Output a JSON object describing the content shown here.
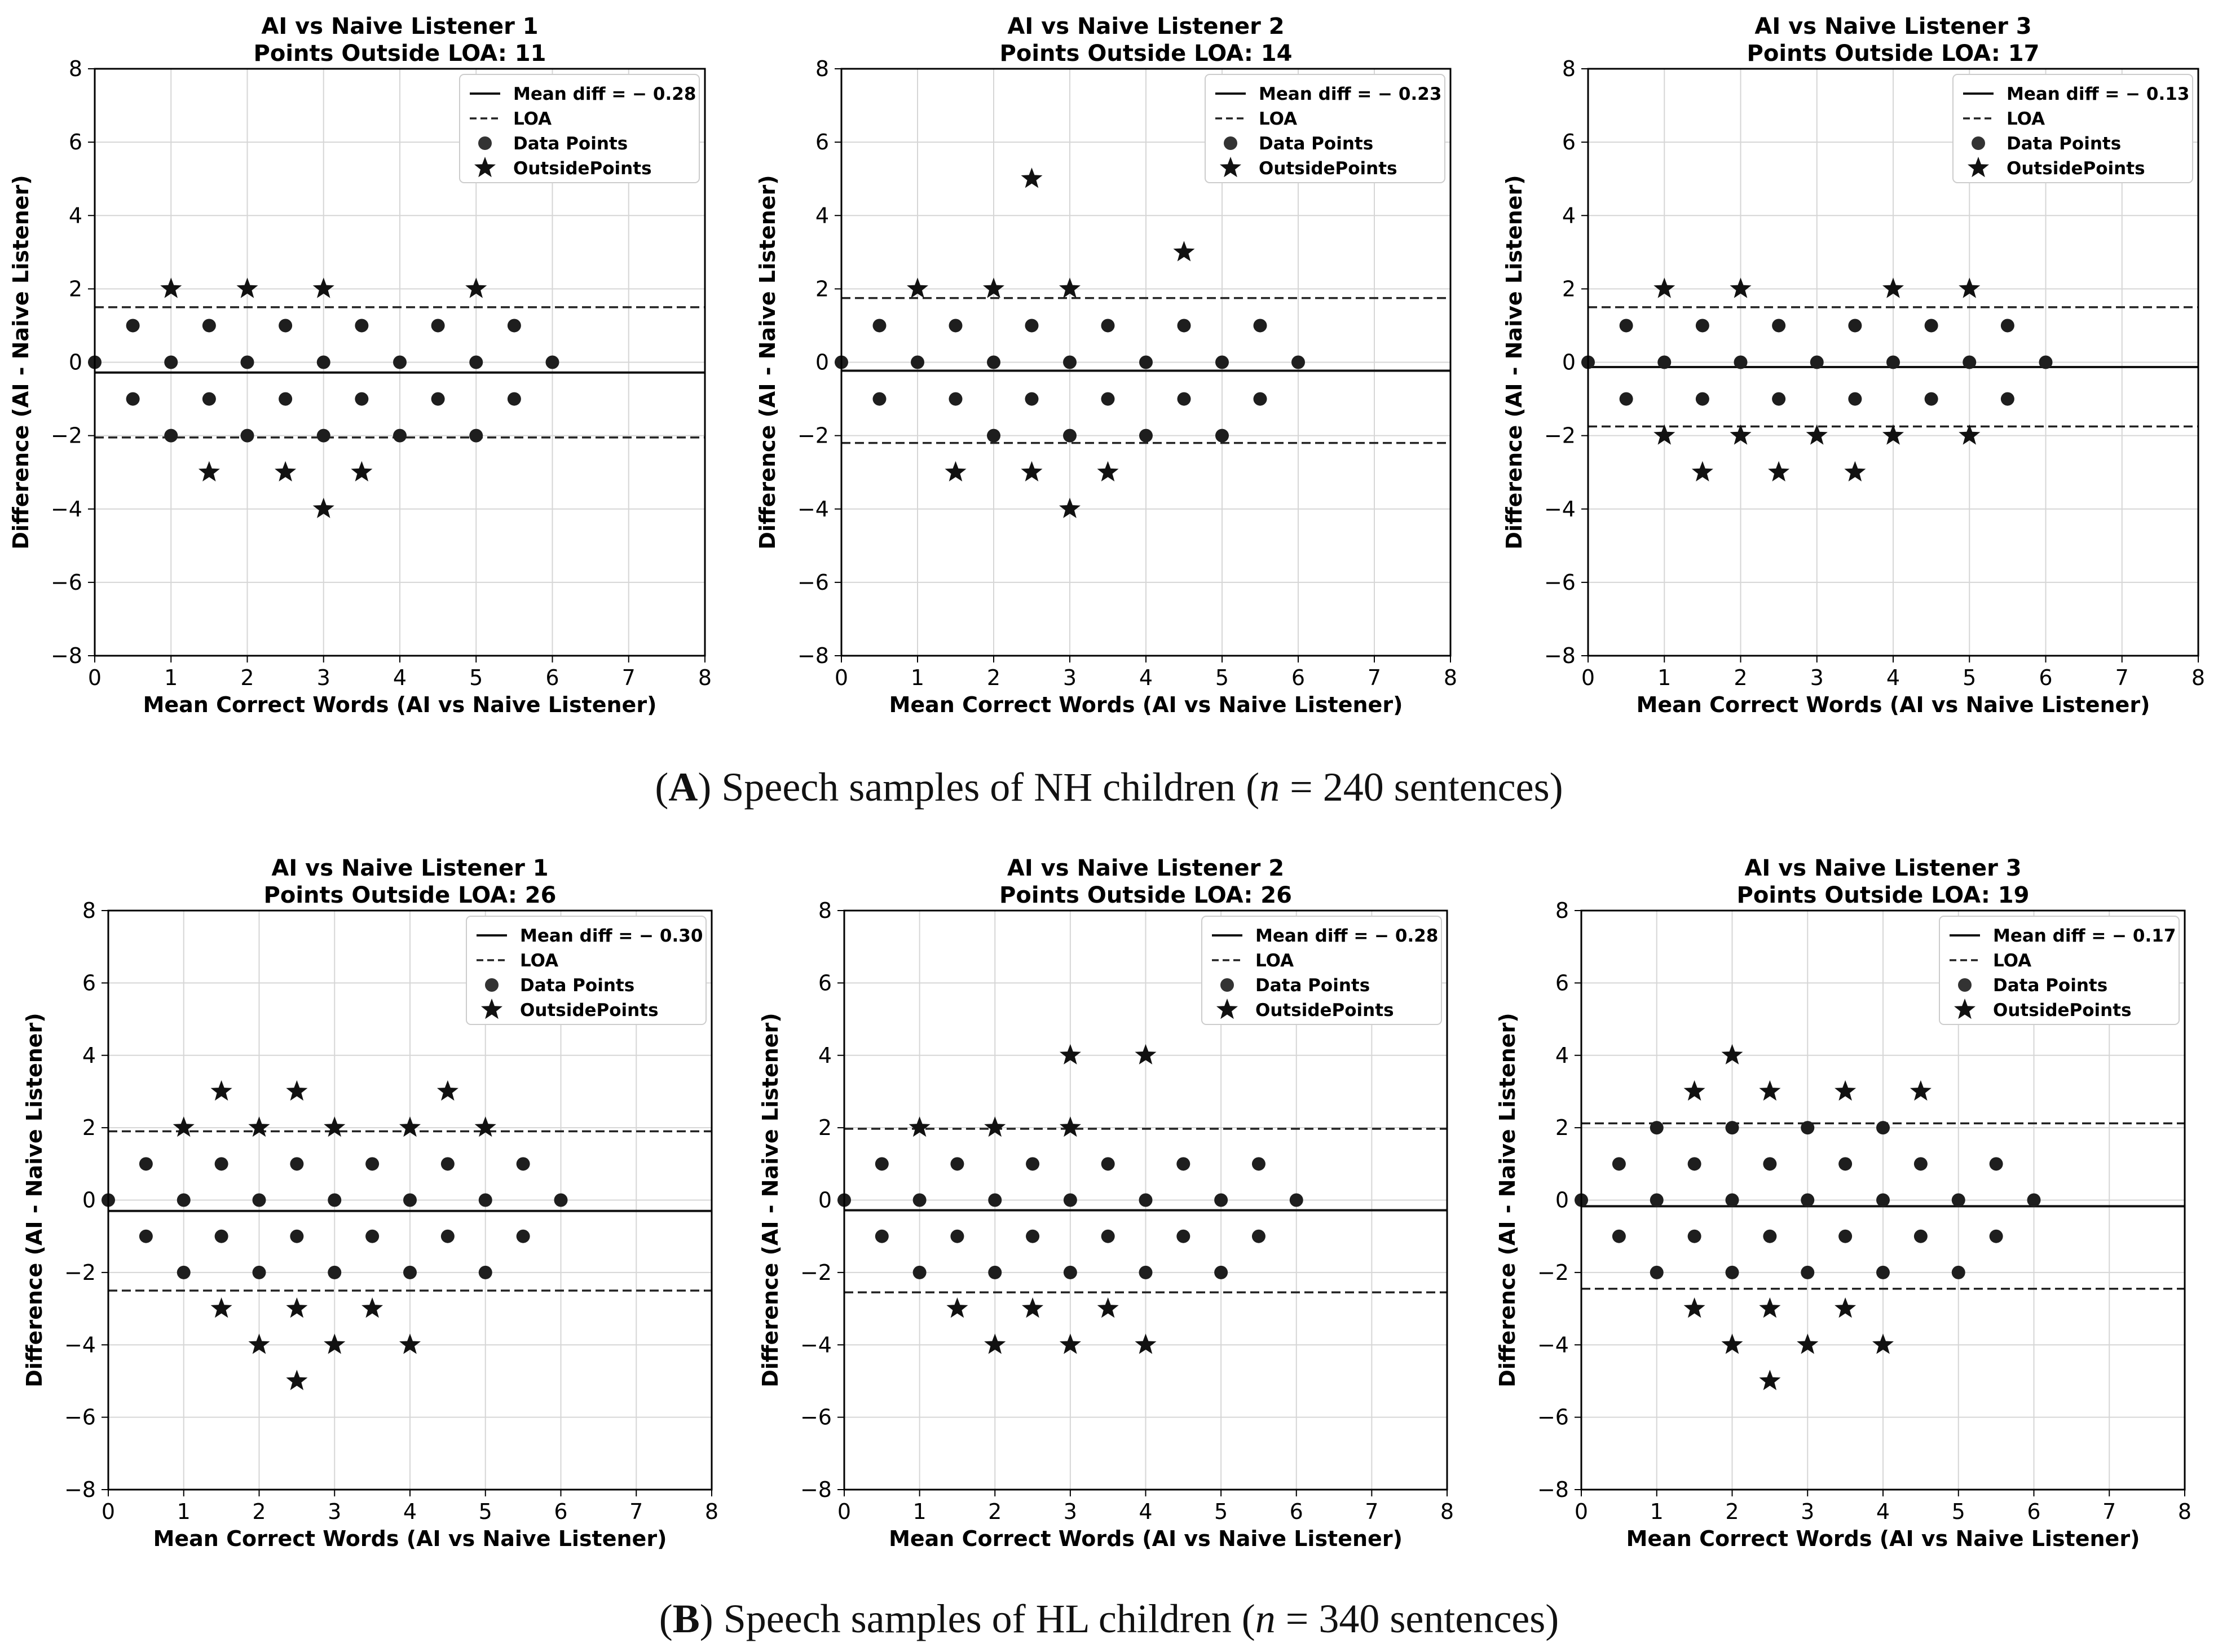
{
  "chart_data": [
    {
      "type": "scatter",
      "title": "AI vs Naive Listener 1",
      "subtitle": "Points Outside LOA: 11",
      "xlabel": "Mean Correct Words (AI vs Naive Listener)",
      "ylabel": "Difference (AI - Naive Listener)",
      "xlim": [
        0,
        8
      ],
      "ylim": [
        -8,
        8
      ],
      "xticks": [
        "0",
        "1",
        "2",
        "3",
        "4",
        "5",
        "6",
        "7",
        "8"
      ],
      "yticks": [
        "−8",
        "−6",
        "−4",
        "−2",
        "0",
        "2",
        "4",
        "6",
        "8"
      ],
      "mean_diff": -0.28,
      "loa": [
        1.5,
        -2.05
      ],
      "legend": {
        "mean_label": "Mean diff =   − 0.28",
        "loa_label": "LOA",
        "data_label": "Data Points",
        "outside_label": "OutsidePoints"
      },
      "points": [
        [
          0,
          0
        ],
        [
          0.5,
          1
        ],
        [
          0.5,
          -1
        ],
        [
          1,
          0
        ],
        [
          1,
          -2
        ],
        [
          1.5,
          1
        ],
        [
          1.5,
          -1
        ],
        [
          2,
          0
        ],
        [
          2,
          -2
        ],
        [
          2.5,
          1
        ],
        [
          2.5,
          -1
        ],
        [
          3,
          0
        ],
        [
          3,
          -2
        ],
        [
          3.5,
          1
        ],
        [
          3.5,
          -1
        ],
        [
          4,
          0
        ],
        [
          4,
          -2
        ],
        [
          4.5,
          1
        ],
        [
          4.5,
          -1
        ],
        [
          5,
          0
        ],
        [
          5,
          -2
        ],
        [
          5.5,
          1
        ],
        [
          5.5,
          -1
        ],
        [
          6,
          0
        ]
      ],
      "outside": [
        [
          1,
          2
        ],
        [
          2,
          2
        ],
        [
          3,
          2
        ],
        [
          5,
          2
        ],
        [
          1.5,
          -3
        ],
        [
          2.5,
          -3
        ],
        [
          3.5,
          -3
        ],
        [
          3,
          -4
        ]
      ]
    },
    {
      "type": "scatter",
      "title": "AI vs Naive Listener 2",
      "subtitle": "Points Outside LOA: 14",
      "xlabel": "Mean Correct Words (AI vs Naive Listener)",
      "ylabel": "Difference (AI - Naive Listener)",
      "xlim": [
        0,
        8
      ],
      "ylim": [
        -8,
        8
      ],
      "xticks": [
        "0",
        "1",
        "2",
        "3",
        "4",
        "5",
        "6",
        "7",
        "8"
      ],
      "yticks": [
        "−8",
        "−6",
        "−4",
        "−2",
        "0",
        "2",
        "4",
        "6",
        "8"
      ],
      "mean_diff": -0.23,
      "loa": [
        1.75,
        -2.2
      ],
      "legend": {
        "mean_label": "Mean diff =   − 0.23",
        "loa_label": "LOA",
        "data_label": "Data Points",
        "outside_label": "OutsidePoints"
      },
      "points": [
        [
          0,
          0
        ],
        [
          0.5,
          1
        ],
        [
          0.5,
          -1
        ],
        [
          1,
          0
        ],
        [
          1.5,
          1
        ],
        [
          1.5,
          -1
        ],
        [
          2,
          0
        ],
        [
          2,
          -2
        ],
        [
          2.5,
          1
        ],
        [
          2.5,
          -1
        ],
        [
          3,
          0
        ],
        [
          3,
          -2
        ],
        [
          3.5,
          1
        ],
        [
          3.5,
          -1
        ],
        [
          4,
          0
        ],
        [
          4,
          -2
        ],
        [
          4.5,
          1
        ],
        [
          4.5,
          -1
        ],
        [
          5,
          0
        ],
        [
          5,
          -2
        ],
        [
          5.5,
          1
        ],
        [
          5.5,
          -1
        ],
        [
          6,
          0
        ]
      ],
      "outside": [
        [
          1,
          2
        ],
        [
          2,
          2
        ],
        [
          3,
          2
        ],
        [
          2.5,
          5
        ],
        [
          4.5,
          3
        ],
        [
          1.5,
          -3
        ],
        [
          2.5,
          -3
        ],
        [
          3.5,
          -3
        ],
        [
          3,
          -4
        ]
      ]
    },
    {
      "type": "scatter",
      "title": "AI vs Naive Listener 3",
      "subtitle": "Points Outside LOA: 17",
      "xlabel": "Mean Correct Words (AI vs Naive Listener)",
      "ylabel": "Difference (AI - Naive Listener)",
      "xlim": [
        0,
        8
      ],
      "ylim": [
        -8,
        8
      ],
      "xticks": [
        "0",
        "1",
        "2",
        "3",
        "4",
        "5",
        "6",
        "7",
        "8"
      ],
      "yticks": [
        "−8",
        "−6",
        "−4",
        "−2",
        "0",
        "2",
        "4",
        "6",
        "8"
      ],
      "mean_diff": -0.13,
      "loa": [
        1.5,
        -1.75
      ],
      "legend": {
        "mean_label": "Mean diff =   − 0.13",
        "loa_label": "LOA",
        "data_label": "Data Points",
        "outside_label": "OutsidePoints"
      },
      "points": [
        [
          0,
          0
        ],
        [
          0.5,
          1
        ],
        [
          0.5,
          -1
        ],
        [
          1,
          0
        ],
        [
          1.5,
          1
        ],
        [
          1.5,
          -1
        ],
        [
          2,
          0
        ],
        [
          2.5,
          1
        ],
        [
          2.5,
          -1
        ],
        [
          3,
          0
        ],
        [
          3.5,
          1
        ],
        [
          3.5,
          -1
        ],
        [
          4,
          0
        ],
        [
          4.5,
          1
        ],
        [
          4.5,
          -1
        ],
        [
          5,
          0
        ],
        [
          5.5,
          1
        ],
        [
          5.5,
          -1
        ],
        [
          6,
          0
        ]
      ],
      "outside": [
        [
          1,
          2
        ],
        [
          2,
          2
        ],
        [
          4,
          2
        ],
        [
          5,
          2
        ],
        [
          1,
          -2
        ],
        [
          2,
          -2
        ],
        [
          3,
          -2
        ],
        [
          4,
          -2
        ],
        [
          5,
          -2
        ],
        [
          1.5,
          -3
        ],
        [
          2.5,
          -3
        ],
        [
          3.5,
          -3
        ]
      ]
    },
    {
      "type": "scatter",
      "title": "AI vs Naive Listener 1",
      "subtitle": "Points Outside LOA: 26",
      "xlabel": "Mean Correct Words (AI vs Naive Listener)",
      "ylabel": "Difference (AI - Naive Listener)",
      "xlim": [
        0,
        8
      ],
      "ylim": [
        -8,
        8
      ],
      "xticks": [
        "0",
        "1",
        "2",
        "3",
        "4",
        "5",
        "6",
        "7",
        "8"
      ],
      "yticks": [
        "−8",
        "−6",
        "−4",
        "−2",
        "0",
        "2",
        "4",
        "6",
        "8"
      ],
      "mean_diff": -0.3,
      "loa": [
        1.9,
        -2.5
      ],
      "legend": {
        "mean_label": "Mean diff =   − 0.30",
        "loa_label": "LOA",
        "data_label": "Data Points",
        "outside_label": "OutsidePoints"
      },
      "points": [
        [
          0,
          0
        ],
        [
          0.5,
          1
        ],
        [
          0.5,
          -1
        ],
        [
          1,
          0
        ],
        [
          1,
          -2
        ],
        [
          1.5,
          1
        ],
        [
          1.5,
          -1
        ],
        [
          2,
          0
        ],
        [
          2,
          -2
        ],
        [
          2.5,
          1
        ],
        [
          2.5,
          -1
        ],
        [
          3,
          0
        ],
        [
          3,
          -2
        ],
        [
          3.5,
          1
        ],
        [
          3.5,
          -1
        ],
        [
          4,
          0
        ],
        [
          4,
          -2
        ],
        [
          4.5,
          1
        ],
        [
          4.5,
          -1
        ],
        [
          5,
          0
        ],
        [
          5,
          -2
        ],
        [
          5.5,
          1
        ],
        [
          5.5,
          -1
        ],
        [
          6,
          0
        ]
      ],
      "outside": [
        [
          1,
          2
        ],
        [
          2,
          2
        ],
        [
          3,
          2
        ],
        [
          4,
          2
        ],
        [
          5,
          2
        ],
        [
          1.5,
          3
        ],
        [
          2.5,
          3
        ],
        [
          4.5,
          3
        ],
        [
          1.5,
          -3
        ],
        [
          2.5,
          -3
        ],
        [
          3.5,
          -3
        ],
        [
          2,
          -4
        ],
        [
          3,
          -4
        ],
        [
          4,
          -4
        ],
        [
          2.5,
          -5
        ]
      ]
    },
    {
      "type": "scatter",
      "title": "AI vs Naive Listener 2",
      "subtitle": "Points Outside LOA: 26",
      "xlabel": "Mean Correct Words (AI vs Naive Listener)",
      "ylabel": "Difference (AI - Naive Listener)",
      "xlim": [
        0,
        8
      ],
      "ylim": [
        -8,
        8
      ],
      "xticks": [
        "0",
        "1",
        "2",
        "3",
        "4",
        "5",
        "6",
        "7",
        "8"
      ],
      "yticks": [
        "−8",
        "−6",
        "−4",
        "−2",
        "0",
        "2",
        "4",
        "6",
        "8"
      ],
      "mean_diff": -0.28,
      "loa": [
        1.97,
        -2.55
      ],
      "legend": {
        "mean_label": "Mean diff =   − 0.28",
        "loa_label": "LOA",
        "data_label": "Data Points",
        "outside_label": "OutsidePoints"
      },
      "points": [
        [
          0,
          0
        ],
        [
          0.5,
          1
        ],
        [
          0.5,
          -1
        ],
        [
          1,
          0
        ],
        [
          1,
          -2
        ],
        [
          1.5,
          1
        ],
        [
          1.5,
          -1
        ],
        [
          2,
          0
        ],
        [
          2,
          -2
        ],
        [
          2.5,
          1
        ],
        [
          2.5,
          -1
        ],
        [
          3,
          0
        ],
        [
          3,
          -2
        ],
        [
          3.5,
          1
        ],
        [
          3.5,
          -1
        ],
        [
          4,
          0
        ],
        [
          4,
          -2
        ],
        [
          4.5,
          1
        ],
        [
          4.5,
          -1
        ],
        [
          5,
          0
        ],
        [
          5,
          -2
        ],
        [
          5.5,
          1
        ],
        [
          5.5,
          -1
        ],
        [
          6,
          0
        ]
      ],
      "outside": [
        [
          1,
          2
        ],
        [
          2,
          2
        ],
        [
          3,
          2
        ],
        [
          3,
          4
        ],
        [
          4,
          4
        ],
        [
          1.5,
          -3
        ],
        [
          2.5,
          -3
        ],
        [
          3.5,
          -3
        ],
        [
          2,
          -4
        ],
        [
          3,
          -4
        ],
        [
          4,
          -4
        ]
      ]
    },
    {
      "type": "scatter",
      "title": "AI vs Naive Listener 3",
      "subtitle": "Points Outside LOA: 19",
      "xlabel": "Mean Correct Words (AI vs Naive Listener)",
      "ylabel": "Difference (AI - Naive Listener)",
      "xlim": [
        0,
        8
      ],
      "ylim": [
        -8,
        8
      ],
      "xticks": [
        "0",
        "1",
        "2",
        "3",
        "4",
        "5",
        "6",
        "7",
        "8"
      ],
      "yticks": [
        "−8",
        "−6",
        "−4",
        "−2",
        "0",
        "2",
        "4",
        "6",
        "8"
      ],
      "mean_diff": -0.17,
      "loa": [
        2.12,
        -2.45
      ],
      "legend": {
        "mean_label": "Mean diff =   − 0.17",
        "loa_label": "LOA",
        "data_label": "Data Points",
        "outside_label": "OutsidePoints"
      },
      "points": [
        [
          0,
          0
        ],
        [
          0.5,
          1
        ],
        [
          0.5,
          -1
        ],
        [
          1,
          0
        ],
        [
          1,
          2
        ],
        [
          1,
          -2
        ],
        [
          1.5,
          1
        ],
        [
          1.5,
          -1
        ],
        [
          2,
          0
        ],
        [
          2,
          2
        ],
        [
          2,
          -2
        ],
        [
          2.5,
          1
        ],
        [
          2.5,
          -1
        ],
        [
          3,
          0
        ],
        [
          3,
          2
        ],
        [
          3,
          -2
        ],
        [
          3.5,
          1
        ],
        [
          3.5,
          -1
        ],
        [
          4,
          0
        ],
        [
          4,
          2
        ],
        [
          4,
          -2
        ],
        [
          4.5,
          1
        ],
        [
          4.5,
          -1
        ],
        [
          5,
          0
        ],
        [
          5,
          -2
        ],
        [
          5.5,
          1
        ],
        [
          5.5,
          -1
        ],
        [
          6,
          0
        ]
      ],
      "outside": [
        [
          2,
          4
        ],
        [
          1.5,
          3
        ],
        [
          2.5,
          3
        ],
        [
          3.5,
          3
        ],
        [
          4.5,
          3
        ],
        [
          1.5,
          -3
        ],
        [
          2.5,
          -3
        ],
        [
          3.5,
          -3
        ],
        [
          2,
          -4
        ],
        [
          3,
          -4
        ],
        [
          4,
          -4
        ],
        [
          2.5,
          -5
        ]
      ]
    }
  ],
  "captions": {
    "a": {
      "label": "A",
      "pre": "(",
      "mid": ") Speech samples of NH children (",
      "n": "n",
      "post": " = 240 sentences)"
    },
    "b": {
      "label": "B",
      "pre": "(",
      "mid": ") Speech samples of HL children (",
      "n": "n",
      "post": " = 340 sentences)"
    }
  }
}
